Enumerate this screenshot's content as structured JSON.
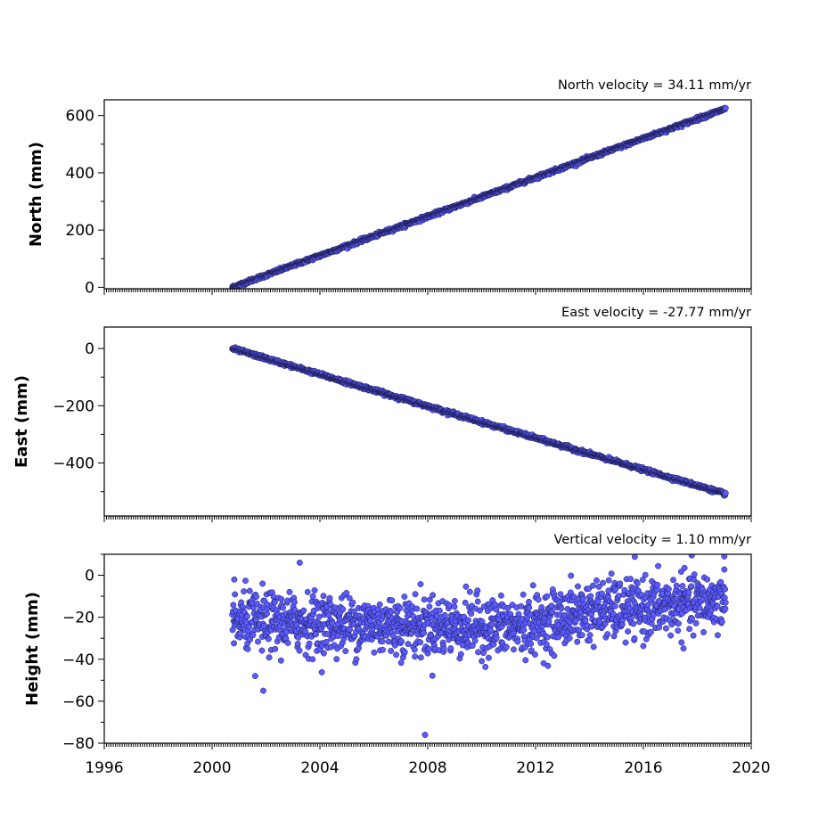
{
  "chart_data": [
    {
      "type": "scatter",
      "title": "North velocity = 34.11 mm/yr",
      "xlabel": "",
      "ylabel": "North (mm)",
      "xlim": [
        1996,
        2020
      ],
      "ylim": [
        -5,
        655
      ],
      "yticks": [
        0,
        200,
        400,
        600
      ],
      "show_xtick_labels": false,
      "marker_color": "#5a5aff",
      "edge_color": "#1a1a4a",
      "series": [
        {
          "start": 2000.75,
          "end": 2019.05,
          "y_at_start": 0,
          "rate_per_year": 34.11,
          "scatter": 3,
          "outliers": []
        }
      ]
    },
    {
      "type": "scatter",
      "title": "East velocity = -27.77 mm/yr",
      "xlabel": "",
      "ylabel": "East (mm)",
      "xlim": [
        1996,
        2020
      ],
      "ylim": [
        -585,
        75
      ],
      "yticks": [
        0,
        -200,
        -400
      ],
      "show_xtick_labels": false,
      "marker_color": "#5a5aff",
      "edge_color": "#1a1a4a",
      "series": [
        {
          "start": 2000.75,
          "end": 2019.05,
          "y_at_start": 0,
          "rate_per_year": -27.77,
          "scatter": 3,
          "outliers": []
        }
      ]
    },
    {
      "type": "scatter",
      "title": "Vertical velocity = 1.10 mm/yr",
      "xlabel": "",
      "ylabel": "Height (mm)",
      "xlim": [
        1996,
        2020
      ],
      "ylim": [
        -80,
        10
      ],
      "yticks": [
        0,
        -20,
        -40,
        -60,
        -80
      ],
      "xticks": [
        1996,
        2000,
        2004,
        2008,
        2012,
        2016,
        2020
      ],
      "show_xtick_labels": true,
      "marker_color": "#5a5aff",
      "edge_color": "#1a1a4a",
      "series": [
        {
          "start": 2000.75,
          "end": 2019.05,
          "trend": [
            [
              2000.75,
              -22
            ],
            [
              2011.0,
              -25
            ],
            [
              2012.5,
              -22
            ],
            [
              2014.0,
              -17
            ],
            [
              2016.0,
              -16
            ],
            [
              2019.05,
              -12
            ]
          ],
          "scatter": 7,
          "outliers": [
            [
              2007.9,
              -76
            ],
            [
              2001.9,
              -55
            ],
            [
              2003.25,
              6
            ],
            [
              2019.0,
              9
            ],
            [
              2001.6,
              -48
            ]
          ]
        }
      ]
    }
  ]
}
